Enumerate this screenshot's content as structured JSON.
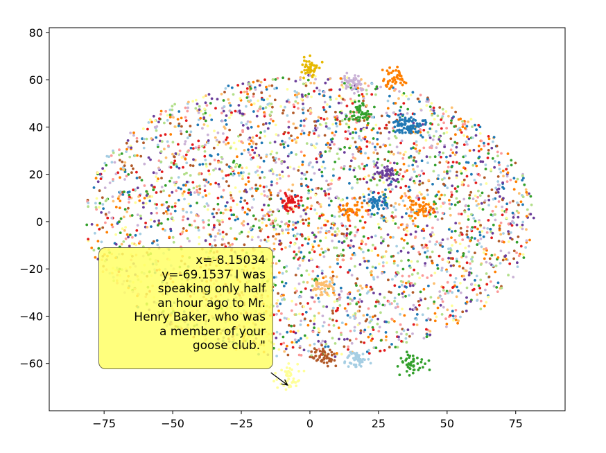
{
  "chart_data": {
    "type": "scatter",
    "title": "",
    "xlabel": "",
    "ylabel": "",
    "xlim": [
      -95,
      93
    ],
    "ylim": [
      -80,
      82
    ],
    "x_ticks": [
      -75,
      -50,
      -25,
      0,
      25,
      50,
      75
    ],
    "y_ticks": [
      -60,
      -40,
      -20,
      0,
      20,
      40,
      60,
      80
    ],
    "x_tick_labels": [
      "−75",
      "−50",
      "−25",
      "0",
      "25",
      "50",
      "75"
    ],
    "y_tick_labels": [
      "−60",
      "−40",
      "−20",
      "0",
      "20",
      "40",
      "60",
      "80"
    ],
    "grid": false,
    "legend": "none",
    "palette": [
      "#a6cee3",
      "#1f78b4",
      "#b2df8a",
      "#33a02c",
      "#fb9a99",
      "#e31a1c",
      "#fdbf6f",
      "#ff7f00",
      "#cab2d6",
      "#6a3d9a",
      "#ffff99",
      "#b15928"
    ],
    "point_count_approx": 9000,
    "clusters": [
      {
        "x": 0,
        "y": 65,
        "color": "#e6b800"
      },
      {
        "x": 31,
        "y": 61,
        "color": "#ff7f00"
      },
      {
        "x": 33,
        "y": 42,
        "color": "#1f78b4"
      },
      {
        "x": 38,
        "y": 40,
        "color": "#1f78b4"
      },
      {
        "x": 18,
        "y": 46,
        "color": "#33a02c"
      },
      {
        "x": 28,
        "y": 20,
        "color": "#6a3d9a"
      },
      {
        "x": 37,
        "y": -60,
        "color": "#33a02c"
      },
      {
        "x": 5,
        "y": -57,
        "color": "#b15928"
      },
      {
        "x": -8,
        "y": -66,
        "color": "#ffff99"
      },
      {
        "x": 5,
        "y": -27,
        "color": "#fdbf6f"
      },
      {
        "x": 17,
        "y": -58,
        "color": "#a6cee3"
      },
      {
        "x": -7,
        "y": 8,
        "color": "#e31a1c"
      },
      {
        "x": 15,
        "y": 5,
        "color": "#ff7f00"
      },
      {
        "x": 40,
        "y": 6,
        "color": "#ff7f00"
      },
      {
        "x": 16,
        "y": 59,
        "color": "#cab2d6"
      },
      {
        "x": 25,
        "y": 8,
        "color": "#1f78b4"
      }
    ],
    "annotation": {
      "x": -8.15034,
      "y": -69.1537,
      "lines": [
        "x=-8.15034",
        "y=-69.1537 I was",
        "speaking only half",
        "an hour ago to Mr.",
        "Henry Baker, who was",
        "a member of your",
        "goose club.\""
      ]
    }
  }
}
